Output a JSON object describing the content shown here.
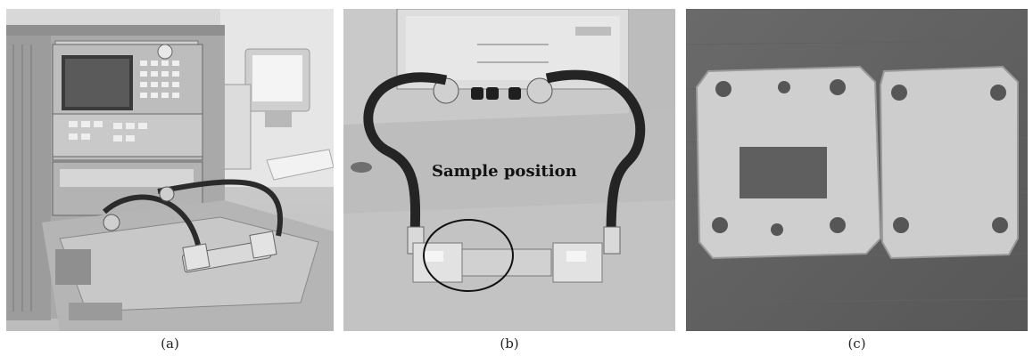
{
  "panels": [
    {
      "id": "a",
      "caption": "(a)"
    },
    {
      "id": "b",
      "caption": "(b)",
      "annotation": "Sample position"
    },
    {
      "id": "c",
      "caption": "(c)"
    }
  ]
}
